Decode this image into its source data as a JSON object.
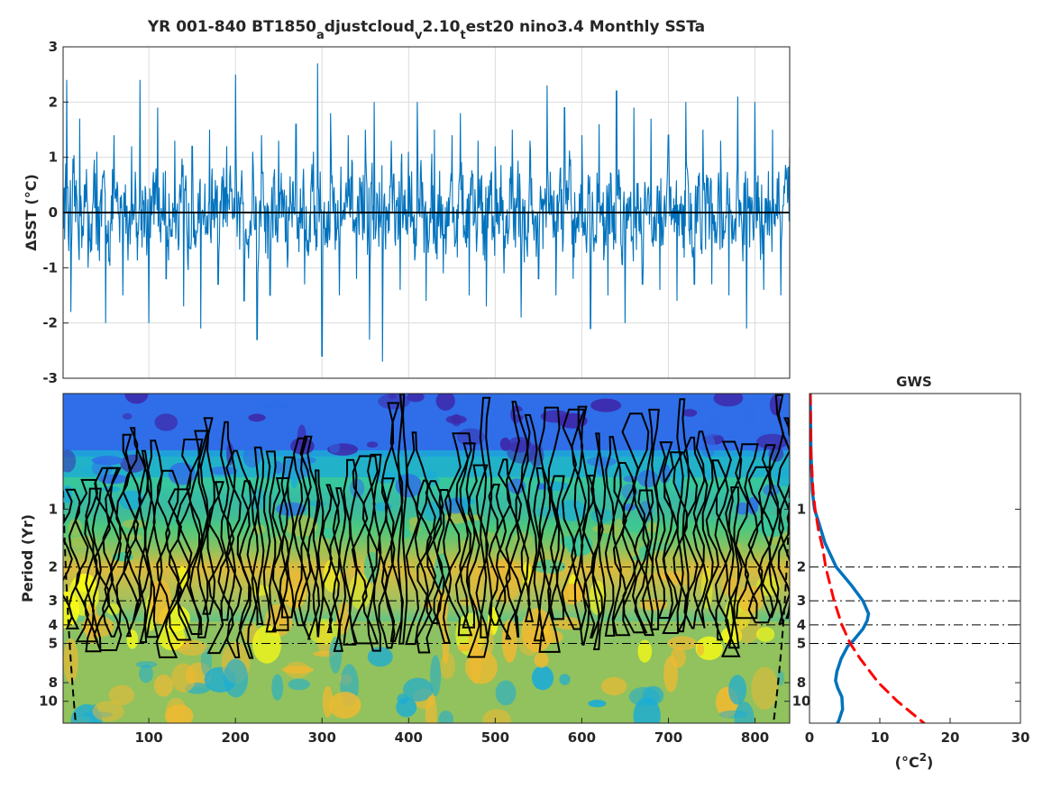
{
  "chart_data": [
    {
      "type": "line",
      "title_parts": [
        "YR 001-840 BT1850",
        "a",
        "djustcloud",
        "v",
        "2.10",
        "t",
        "est20 nino3.4 Monthly SSTa"
      ],
      "ylabel": "ΔSST (°C)",
      "xlim": [
        1,
        840
      ],
      "ylim": [
        -3,
        3
      ],
      "yticks": [
        "3",
        "2",
        "1",
        "0",
        "-1",
        "-2",
        "-3"
      ],
      "grid": true,
      "series": [
        {
          "color": "#0072bd",
          "x": [
            1,
            5,
            10,
            20,
            30,
            40,
            50,
            60,
            70,
            80,
            90,
            100,
            110,
            120,
            130,
            140,
            150,
            160,
            170,
            180,
            190,
            200,
            210,
            220,
            225,
            230,
            240,
            250,
            260,
            270,
            280,
            290,
            295,
            300,
            310,
            320,
            330,
            340,
            350,
            355,
            360,
            370,
            380,
            390,
            400,
            410,
            420,
            430,
            440,
            450,
            460,
            470,
            480,
            490,
            500,
            510,
            520,
            530,
            540,
            550,
            560,
            570,
            580,
            590,
            600,
            610,
            620,
            630,
            640,
            650,
            660,
            670,
            680,
            690,
            700,
            710,
            720,
            730,
            740,
            750,
            760,
            770,
            780,
            790,
            800,
            810,
            820,
            830,
            840
          ],
          "values": [
            -0.3,
            2.4,
            -1.8,
            1.7,
            -1.0,
            1.1,
            -2.0,
            1.4,
            -1.5,
            1.2,
            2.4,
            -2.0,
            1.9,
            -1.2,
            1.3,
            -1.7,
            1.2,
            -2.1,
            1.5,
            -1.3,
            1.2,
            2.5,
            -1.6,
            1.1,
            -2.3,
            1.4,
            -1.5,
            1.3,
            -1.0,
            1.6,
            -1.3,
            1.1,
            2.7,
            -2.6,
            1.8,
            -1.5,
            1.4,
            -1.2,
            1.5,
            -2.3,
            2.0,
            -2.7,
            1.3,
            -1.4,
            1.1,
            2.0,
            -1.6,
            1.5,
            -1.1,
            1.4,
            1.8,
            -1.5,
            1.3,
            -1.7,
            1.2,
            -1.1,
            1.5,
            -1.9,
            1.3,
            -1.2,
            2.3,
            -1.5,
            1.9,
            -1.2,
            1.4,
            -2.1,
            1.6,
            -1.5,
            2.2,
            -2.0,
            1.9,
            -1.3,
            1.7,
            -1.4,
            1.4,
            -1.6,
            2.0,
            -1.3,
            1.5,
            -1.3,
            1.3,
            -1.5,
            2.1,
            -2.1,
            2.0,
            -1.4,
            1.5,
            -1.5,
            1.2
          ]
        },
        {
          "name": "zero line",
          "color": "#000000",
          "x": [
            1,
            840
          ],
          "values": [
            0,
            0
          ]
        }
      ]
    },
    {
      "type": "heatmap",
      "ylabel": "Period (Yr)",
      "y_scale": "log",
      "ylim": [
        0.25,
        13
      ],
      "xlim": [
        1,
        840
      ],
      "xticks": [
        100,
        200,
        300,
        400,
        500,
        600,
        700,
        800
      ],
      "yticks": [
        1,
        2,
        3,
        4,
        5,
        8,
        10
      ],
      "reference_periods": [
        2,
        3,
        4,
        5
      ],
      "band_peak_period": 3.5,
      "colormap": [
        "#3e26a8",
        "#2f6ee8",
        "#1bacd6",
        "#37c79d",
        "#a8c14d",
        "#f0b931",
        "#f9fb14"
      ]
    },
    {
      "type": "line",
      "title": "GWS",
      "xlabel_base": "(°C",
      "xlabel_sup": "2",
      "xlabel_end": ")",
      "xlim": [
        0,
        30
      ],
      "xticks": [
        0,
        10,
        20,
        30
      ],
      "yticks": [
        1,
        2,
        3,
        4,
        5,
        8,
        10
      ],
      "y_scale": "log",
      "reference_periods": [
        2,
        3,
        4,
        5
      ],
      "series": [
        {
          "color": "#0072bd",
          "period": [
            0.25,
            0.5,
            0.8,
            1.0,
            1.2,
            1.5,
            2.0,
            2.5,
            3.0,
            3.5,
            3.8,
            4.2,
            4.8,
            5.2,
            6.0,
            7.0,
            7.8,
            8.5,
            9.5,
            11.0,
            12.5,
            13.0
          ],
          "power": [
            0.1,
            0.2,
            0.4,
            0.7,
            1.4,
            2.2,
            3.8,
            6.0,
            7.6,
            8.4,
            8.2,
            7.6,
            6.3,
            5.4,
            4.5,
            3.9,
            3.7,
            4.0,
            4.6,
            4.7,
            4.2,
            4.0
          ]
        },
        {
          "color": "#ff0000",
          "dashed": true,
          "period": [
            0.25,
            0.5,
            0.8,
            1.0,
            1.3,
            1.6,
            2.0,
            3.0,
            4.0,
            5.0,
            6.0,
            8.0,
            10.0,
            13.0
          ],
          "power": [
            0.1,
            0.2,
            0.5,
            0.8,
            1.3,
            1.9,
            2.3,
            3.5,
            4.6,
            5.8,
            7.2,
            9.8,
            12.5,
            16.3
          ]
        }
      ]
    }
  ]
}
